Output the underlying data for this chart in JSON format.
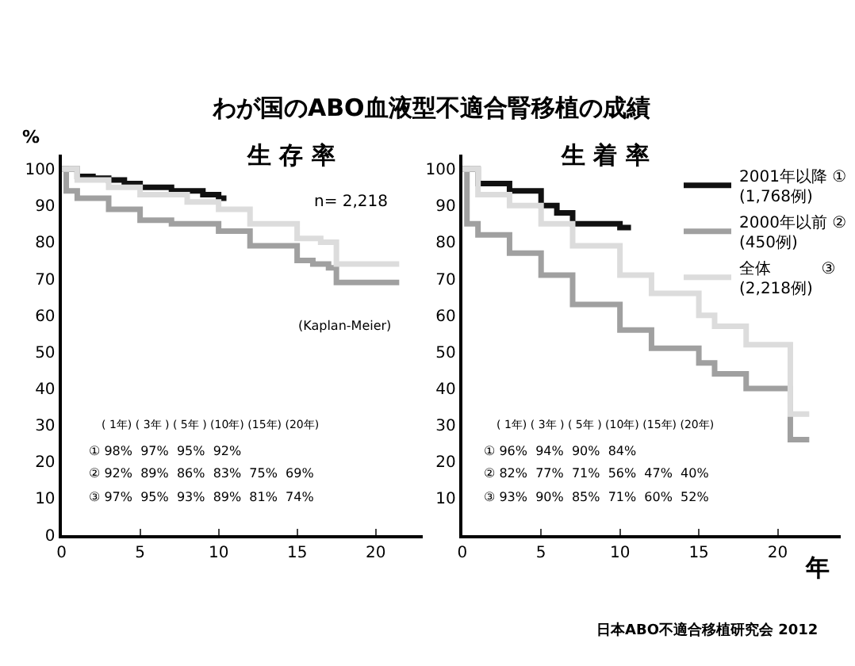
{
  "chart_data": [
    {
      "type": "step",
      "title": "わが国のABO血液型不適合腎移植の成績",
      "subtitle": "生 存 率",
      "ylabel": "%",
      "xlim": [
        0,
        23
      ],
      "ylim": [
        0,
        104
      ],
      "xticks": [
        0,
        5,
        10,
        15,
        20
      ],
      "yticks": [
        0,
        10,
        20,
        30,
        40,
        50,
        60,
        70,
        80,
        90,
        100
      ],
      "legend": false,
      "marker": "none",
      "line_style": "solid",
      "series": [
        {
          "color": "#111111",
          "x": [
            0,
            1,
            2,
            3,
            4,
            5,
            7,
            9,
            10,
            10.5
          ],
          "values": [
            100,
            98,
            97.5,
            97,
            96,
            95,
            94,
            93,
            92,
            92
          ]
        },
        {
          "color": "#a0a0a0",
          "x": [
            0,
            0.3,
            1,
            3,
            5,
            7,
            10,
            12,
            15,
            16,
            17,
            17.5,
            21.5
          ],
          "values": [
            100,
            94,
            92,
            89,
            86,
            85,
            83,
            79,
            75,
            74,
            73,
            69,
            69
          ]
        },
        {
          "color": "#dcdcdc",
          "x": [
            0,
            1,
            3,
            5,
            8,
            10,
            12,
            15,
            16.5,
            17.5,
            21.5
          ],
          "values": [
            100,
            97,
            95,
            93,
            91,
            89,
            85,
            81,
            80,
            74,
            74
          ]
        }
      ],
      "annotations": [
        "n= 2,218",
        "(Kaplan-Meier)",
        "( 1年) ( 3年 ) ( 5年 ) (10年) (15年) (20年)",
        "① 98%  97%  95%  92%",
        "② 92%  89%  86%  83%  75%  69%",
        "③ 97%  95%  93%  89%  81%  74%"
      ]
    },
    {
      "type": "step",
      "subtitle": "生 着 率",
      "xlabel": "年",
      "xlim": [
        0,
        24
      ],
      "ylim": [
        0,
        104
      ],
      "xticks": [
        0,
        5,
        10,
        15,
        20
      ],
      "yticks": [
        10,
        20,
        30,
        40,
        50,
        60,
        70,
        80,
        90,
        100
      ],
      "legend": "top right",
      "marker": "none",
      "line_style": "solid",
      "series": [
        {
          "name": "2001年以降 ①\n(1,768例)",
          "color": "#111111",
          "x": [
            0,
            1,
            3,
            5,
            6,
            7,
            10,
            10.7
          ],
          "values": [
            100,
            96,
            94,
            90,
            88,
            85,
            84,
            84
          ]
        },
        {
          "name": "2000年以前 ②\n(450例)",
          "color": "#a0a0a0",
          "x": [
            0,
            0.3,
            1,
            3,
            5,
            7,
            10,
            12,
            15,
            16,
            18,
            20.8,
            22
          ],
          "values": [
            100,
            85,
            82,
            77,
            71,
            63,
            56,
            51,
            47,
            44,
            40,
            26,
            26
          ]
        },
        {
          "name": "全体          ③\n(2,218例)",
          "color": "#dcdcdc",
          "x": [
            0,
            1,
            3,
            5,
            7,
            10,
            12,
            15,
            16,
            18,
            20.8,
            22
          ],
          "values": [
            100,
            93,
            90,
            85,
            79,
            71,
            66,
            60,
            57,
            52,
            33,
            33
          ]
        }
      ],
      "annotations": [
        "( 1年) ( 3年 ) ( 5年 ) (10年) (15年) (20年)",
        "① 96%  94%  90%  84%",
        "② 82%  77%  71%  56%  47%  40%",
        "③ 93%  90%  85%  71%  60%  52%",
        "日本ABO不適合移植研究会 2012"
      ]
    }
  ]
}
